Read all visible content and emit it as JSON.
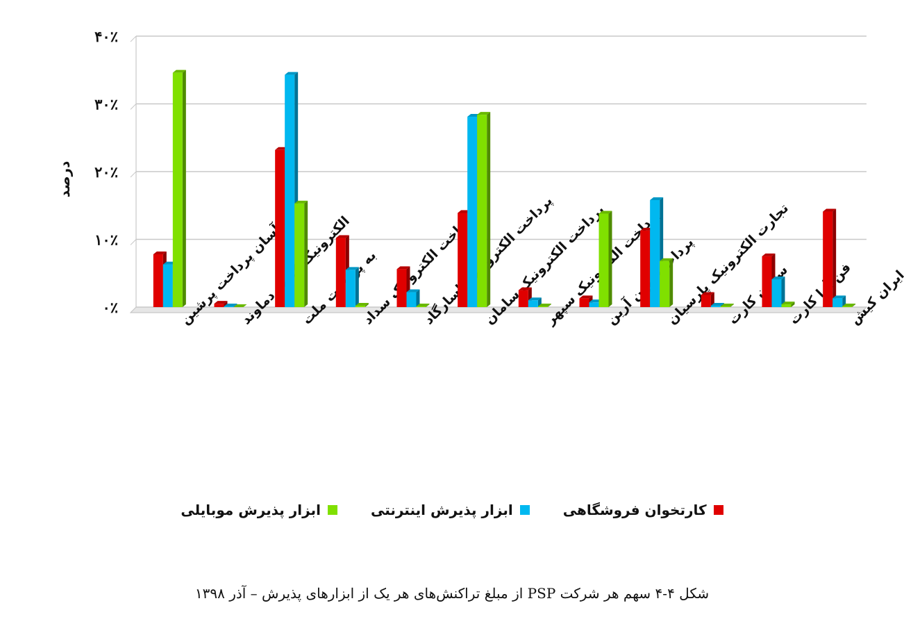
{
  "chart_data": {
    "type": "bar",
    "ylabel": "درصد",
    "ylim": [
      0,
      40
    ],
    "yticks": [
      0,
      10,
      20,
      30,
      40
    ],
    "ytick_labels": [
      "۰٪",
      "۱۰٪",
      "۲۰٪",
      "۳۰٪",
      "۴۰٪"
    ],
    "grid": true,
    "legend_position": "bottom",
    "categories": [
      "آسان پرداخت پرشین",
      "الکترونیک کارت دماوند",
      "به پرداخت ملت",
      "پرداخت الکترونیک سداد",
      "پرداخت الکترونیک پاسارگاد",
      "پرداخت الکترونیک سامان",
      "پرداخت الکترونیک سپهر",
      "پرداخت نوین آرین",
      "تجارت الکترونیک پارسیان",
      "سایان کارت",
      "فن آوا کارت",
      "کارت اعتباری ایران کیش"
    ],
    "series": [
      {
        "name": "کارتخوان فروشگاهی",
        "color": "#e00000",
        "values": [
          7.8,
          0.5,
          23.2,
          10.2,
          5.6,
          13.9,
          2.5,
          1.3,
          11.3,
          1.8,
          7.5,
          14.1
        ]
      },
      {
        "name": "ابزار پذیرش اینترنتی",
        "color": "#00b8f0",
        "values": [
          6.3,
          0.1,
          34.3,
          5.5,
          2.2,
          28.1,
          1.0,
          0.7,
          15.8,
          0.2,
          4.1,
          1.3
        ]
      },
      {
        "name": "ابزار پذیرش موبایلی",
        "color": "#80e000",
        "values": [
          34.6,
          0.0,
          15.3,
          0.2,
          0.1,
          28.4,
          0.1,
          13.8,
          6.8,
          0.1,
          0.4,
          0.1
        ]
      }
    ]
  },
  "caption": "شکل ۴-۴ سهم هر شرکت PSP از مبلغ تراکنش‌های هر یک از ابزارهای پذیرش – آذر ۱۳۹۸"
}
